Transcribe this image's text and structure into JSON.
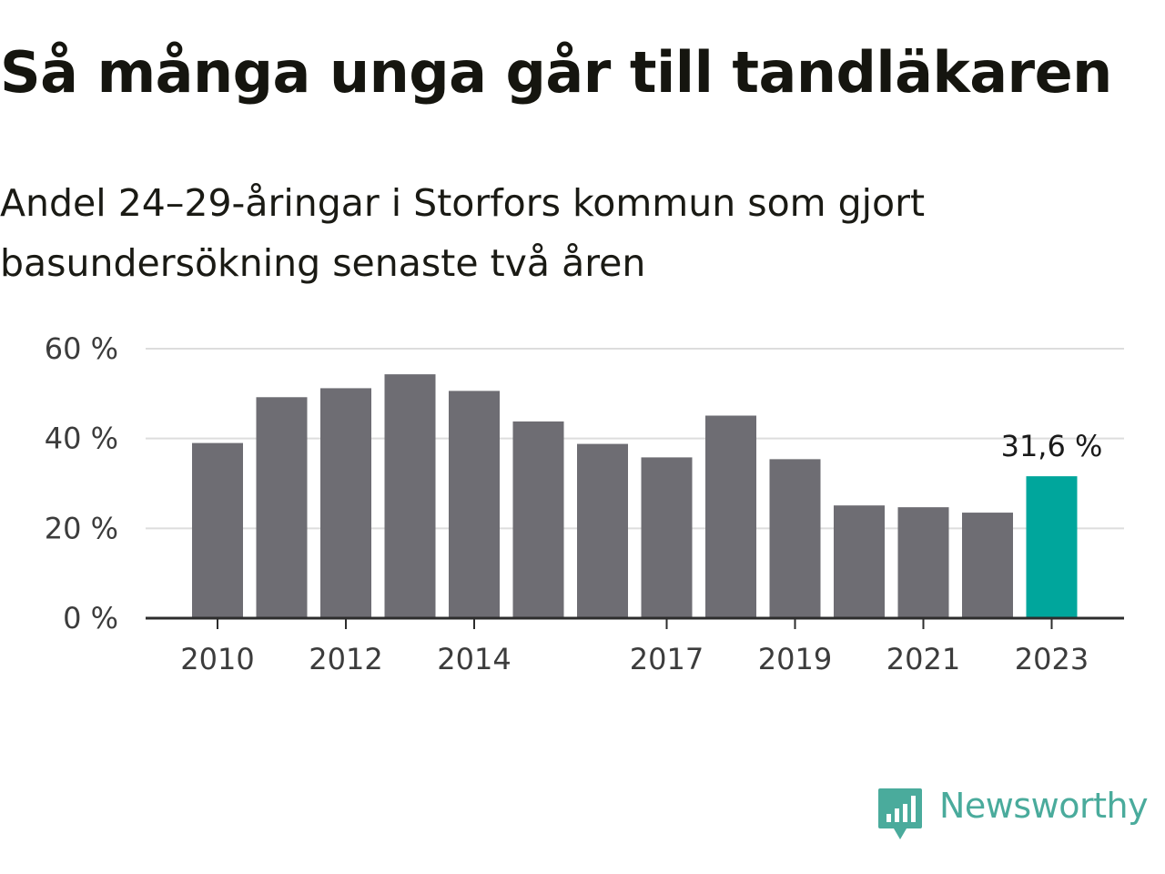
{
  "title": "Så många unga går till tandläkaren",
  "subtitle": "Andel 24–29-åringar i Storfors kommun som gjort basundersökning senaste två åren",
  "brand": {
    "name": "Newsworthy",
    "color": "#4aab9c"
  },
  "colors": {
    "bar": "#6e6d73",
    "highlight": "#00a69c",
    "grid": "#dddddd",
    "axis": "#2d2d2d"
  },
  "chart_data": {
    "type": "bar",
    "categories": [
      "2010",
      "2011",
      "2012",
      "2013",
      "2014",
      "2015",
      "2016",
      "2017",
      "2018",
      "2019",
      "2020",
      "2021",
      "2022",
      "2023"
    ],
    "x_tick_labels": [
      "2010",
      "2012",
      "2014",
      "2017",
      "2019",
      "2021",
      "2023"
    ],
    "values": [
      39.0,
      49.2,
      51.2,
      54.3,
      50.6,
      43.8,
      38.8,
      35.8,
      45.1,
      35.4,
      25.1,
      24.7,
      23.5,
      31.6
    ],
    "y_ticks": [
      "0 %",
      "20 %",
      "40 %",
      "60 %"
    ],
    "ylim": [
      0,
      60
    ],
    "highlight_index": 13,
    "highlight_label": "31,6 %",
    "grid": true,
    "xlabel": "",
    "ylabel": ""
  }
}
